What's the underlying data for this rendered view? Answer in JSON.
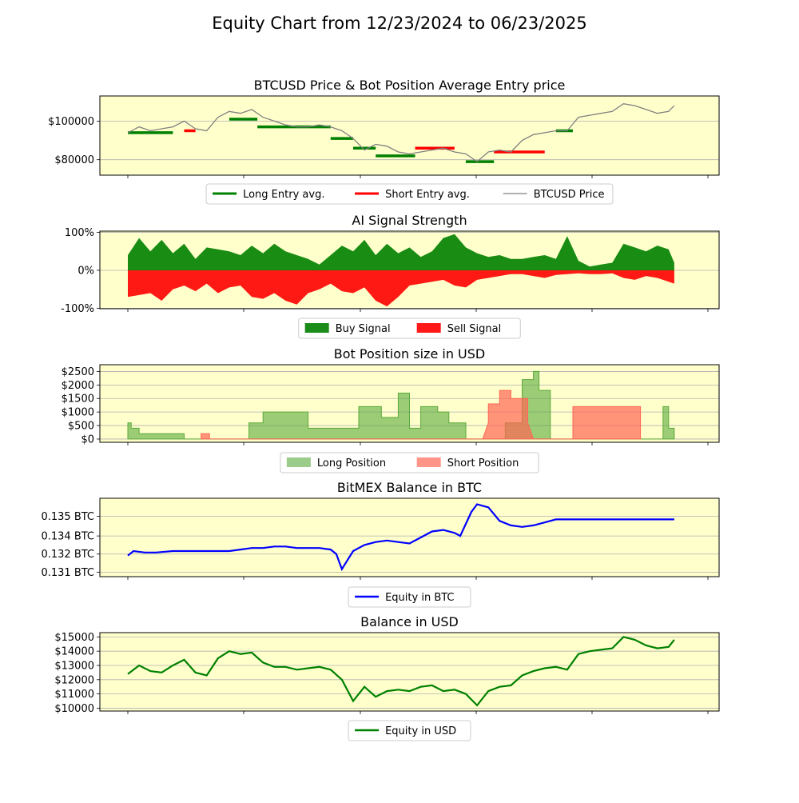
{
  "figure": {
    "title": "Equity Chart from 12/23/2024 to 06/23/2025"
  },
  "colors": {
    "panel_bg": "#ffffcc",
    "long": "#008000",
    "short": "#ff0000",
    "price": "#808080",
    "buy": "#008000",
    "sell": "#ff0000",
    "long_pos": "#5aaa3a",
    "short_pos": "#ff6655",
    "btc": "#0000ff",
    "usd": "#008000",
    "grid": "#b0b0b0"
  },
  "chart_data": [
    {
      "type": "line",
      "title": "BTCUSD Price & Bot Position Average Entry price",
      "x_range": [
        0,
        100
      ],
      "ylim": [
        72000,
        113000
      ],
      "yticks": [
        80000,
        100000
      ],
      "ytick_labels": [
        "$80000",
        "$100000"
      ],
      "grid": true,
      "legend_position": "bottom-center",
      "legend": [
        "Long Entry avg.",
        "Short Entry avg.",
        "BTCUSD Price"
      ],
      "series": [
        {
          "name": "BTCUSD Price",
          "x": [
            0,
            2,
            4,
            6,
            8,
            10,
            12,
            14,
            16,
            18,
            20,
            22,
            24,
            26,
            28,
            30,
            32,
            34,
            36,
            38,
            40,
            42,
            44,
            46,
            48,
            50,
            52,
            54,
            56,
            58,
            60,
            62,
            64,
            66,
            68,
            70,
            72,
            74,
            76,
            78,
            80,
            82,
            84,
            86,
            88,
            90,
            92,
            94,
            96,
            97
          ],
          "y": [
            94000,
            97000,
            95000,
            96000,
            97000,
            100000,
            96000,
            95000,
            102000,
            105000,
            104000,
            106000,
            102000,
            100000,
            98000,
            97000,
            97000,
            98000,
            97000,
            95000,
            91000,
            85000,
            88000,
            87000,
            84000,
            83000,
            84000,
            85000,
            86000,
            84000,
            83000,
            79000,
            84000,
            85000,
            84000,
            90000,
            93000,
            94000,
            95000,
            95000,
            102000,
            103000,
            104000,
            105000,
            109000,
            108000,
            106000,
            104000,
            105000,
            108000
          ]
        }
      ],
      "segments": [
        {
          "side": "long",
          "x0": 0,
          "x1": 8,
          "y": 94000
        },
        {
          "side": "short",
          "x0": 10,
          "x1": 12,
          "y": 95000
        },
        {
          "side": "long",
          "x0": 18,
          "x1": 23,
          "y": 101000
        },
        {
          "side": "long",
          "x0": 23,
          "x1": 36,
          "y": 97000
        },
        {
          "side": "long",
          "x0": 36,
          "x1": 40,
          "y": 91000
        },
        {
          "side": "long",
          "x0": 40,
          "x1": 44,
          "y": 86000
        },
        {
          "side": "long",
          "x0": 44,
          "x1": 51,
          "y": 82000
        },
        {
          "side": "short",
          "x0": 51,
          "x1": 58,
          "y": 86000
        },
        {
          "side": "long",
          "x0": 60,
          "x1": 65,
          "y": 79000
        },
        {
          "side": "short",
          "x0": 65,
          "x1": 74,
          "y": 84000
        },
        {
          "side": "long",
          "x0": 76,
          "x1": 79,
          "y": 95000
        }
      ]
    },
    {
      "type": "area",
      "title": "AI Signal Strength",
      "x_range": [
        0,
        100
      ],
      "ylim": [
        -101,
        103
      ],
      "yticks": [
        -100,
        0,
        100
      ],
      "ytick_labels": [
        "-100%",
        "0%",
        "100%"
      ],
      "grid": true,
      "legend_position": "bottom-center",
      "legend": [
        "Buy Signal",
        "Sell Signal"
      ],
      "series": [
        {
          "name": "Buy Signal",
          "x": [
            0,
            2,
            4,
            6,
            8,
            10,
            12,
            14,
            16,
            18,
            20,
            22,
            24,
            26,
            28,
            30,
            32,
            34,
            36,
            38,
            40,
            42,
            44,
            46,
            48,
            50,
            52,
            54,
            56,
            58,
            60,
            62,
            64,
            66,
            68,
            70,
            72,
            74,
            76,
            78,
            80,
            82,
            84,
            86,
            88,
            90,
            92,
            94,
            96,
            97
          ],
          "y": [
            40,
            85,
            50,
            80,
            45,
            70,
            30,
            60,
            55,
            50,
            40,
            65,
            45,
            70,
            50,
            40,
            30,
            15,
            40,
            65,
            50,
            80,
            40,
            70,
            45,
            60,
            35,
            50,
            85,
            95,
            60,
            45,
            35,
            40,
            30,
            30,
            35,
            40,
            30,
            90,
            25,
            10,
            15,
            20,
            70,
            60,
            50,
            65,
            55,
            20
          ]
        },
        {
          "name": "Sell Signal",
          "x": [
            0,
            2,
            4,
            6,
            8,
            10,
            12,
            14,
            16,
            18,
            20,
            22,
            24,
            26,
            28,
            30,
            32,
            34,
            36,
            38,
            40,
            42,
            44,
            46,
            48,
            50,
            52,
            54,
            56,
            58,
            60,
            62,
            64,
            66,
            68,
            70,
            72,
            74,
            76,
            78,
            80,
            82,
            84,
            86,
            88,
            90,
            92,
            94,
            96,
            97
          ],
          "y": [
            -70,
            -65,
            -60,
            -80,
            -50,
            -40,
            -55,
            -35,
            -60,
            -45,
            -40,
            -70,
            -75,
            -60,
            -80,
            -90,
            -60,
            -50,
            -35,
            -55,
            -60,
            -45,
            -80,
            -95,
            -70,
            -40,
            -35,
            -30,
            -25,
            -40,
            -45,
            -25,
            -20,
            -15,
            -10,
            -10,
            -15,
            -20,
            -12,
            -10,
            -8,
            -10,
            -10,
            -8,
            -20,
            -25,
            -15,
            -20,
            -30,
            -35
          ]
        }
      ]
    },
    {
      "type": "area",
      "title": "Bot Position size in USD",
      "x_range": [
        0,
        100
      ],
      "ylim": [
        -120,
        2750
      ],
      "yticks": [
        0,
        500,
        1000,
        1500,
        2000,
        2500
      ],
      "ytick_labels": [
        "$0",
        "$500",
        "$1000",
        "$1500",
        "$2000",
        "$2500"
      ],
      "grid": true,
      "legend_position": "bottom-center",
      "legend": [
        "Long Position",
        "Short Position"
      ],
      "series": [
        {
          "name": "Long Position",
          "x": [
            0,
            0.6,
            0.6,
            2,
            2,
            10,
            10,
            21.5,
            21.5,
            24,
            24,
            29,
            29,
            32,
            32,
            41,
            41,
            45,
            45,
            48,
            48,
            50,
            50,
            52,
            52,
            55,
            55,
            57,
            57,
            60,
            60,
            63,
            63,
            65,
            65,
            66,
            66,
            67,
            67,
            70,
            70,
            72,
            72,
            73,
            73,
            75,
            75,
            76,
            76,
            79,
            79,
            80,
            80,
            95,
            95,
            96,
            96,
            97,
            97
          ],
          "y": [
            600,
            600,
            400,
            400,
            200,
            200,
            0,
            0,
            600,
            600,
            1000,
            1000,
            1000,
            1000,
            400,
            400,
            1200,
            1200,
            800,
            800,
            1700,
            1700,
            400,
            400,
            1200,
            1200,
            1000,
            1000,
            600,
            600,
            0,
            0,
            0,
            0,
            0,
            0,
            0,
            0,
            600,
            600,
            2200,
            2200,
            2500,
            2500,
            1800,
            1800,
            0,
            0,
            0,
            0,
            0,
            0,
            0,
            0,
            1200,
            1200,
            400,
            400,
            0
          ]
        },
        {
          "name": "Short Position",
          "x": [
            13,
            13,
            14.5,
            14.5,
            63,
            64,
            64,
            66,
            66,
            68,
            68,
            71,
            71,
            72,
            79,
            79,
            91,
            91
          ],
          "y": [
            0,
            200,
            200,
            0,
            0,
            600,
            1300,
            1300,
            1800,
            1800,
            1500,
            1500,
            600,
            0,
            0,
            1200,
            1200,
            0
          ]
        }
      ]
    },
    {
      "type": "line",
      "title": "BitMEX Balance in BTC",
      "x_range": [
        0,
        100
      ],
      "ylim": [
        0.1307,
        0.1359
      ],
      "yticks": [
        0.131,
        0.1322,
        0.1334,
        0.1347
      ],
      "ytick_labels": [
        "0.131 BTC",
        "0.132 BTC",
        "0.134 BTC",
        "0.135 BTC"
      ],
      "grid": true,
      "legend_position": "bottom-center",
      "legend": [
        "Equity in BTC"
      ],
      "series": [
        {
          "name": "Equity in BTC",
          "x": [
            0,
            1,
            3,
            5,
            8,
            10,
            12,
            14,
            18,
            20,
            22,
            24,
            26,
            28,
            30,
            32,
            34,
            36,
            37,
            38,
            39,
            40,
            41,
            42,
            44,
            46,
            48,
            50,
            52,
            54,
            56,
            58,
            59,
            60,
            61,
            62,
            63,
            64,
            66,
            68,
            70,
            72,
            74,
            76,
            78,
            80,
            82,
            84,
            86,
            88,
            90,
            92,
            94,
            96,
            97
          ],
          "y": [
            0.1321,
            0.1324,
            0.1323,
            0.1323,
            0.1324,
            0.1324,
            0.1324,
            0.1324,
            0.1324,
            0.1325,
            0.1326,
            0.1326,
            0.1327,
            0.1327,
            0.1326,
            0.1326,
            0.1326,
            0.1325,
            0.1322,
            0.1312,
            0.1318,
            0.1324,
            0.1326,
            0.1328,
            0.133,
            0.1331,
            0.133,
            0.1329,
            0.1333,
            0.1337,
            0.1338,
            0.1336,
            0.1334,
            0.1342,
            0.135,
            0.1355,
            0.1354,
            0.1353,
            0.1344,
            0.1341,
            0.134,
            0.1341,
            0.1343,
            0.1345,
            0.1345,
            0.1345,
            0.1345,
            0.1345,
            0.1345,
            0.1345,
            0.1345,
            0.1345,
            0.1345,
            0.1345,
            0.1345
          ]
        }
      ]
    },
    {
      "type": "line",
      "title": "Balance in USD",
      "x_range": [
        0,
        100
      ],
      "ylim": [
        9800,
        15300
      ],
      "yticks": [
        10000,
        11000,
        12000,
        13000,
        14000,
        15000
      ],
      "ytick_labels": [
        "$10000",
        "$11000",
        "$12000",
        "$13000",
        "$14000",
        "$15000"
      ],
      "grid": true,
      "legend_position": "bottom-center",
      "legend": [
        "Equity in USD"
      ],
      "series": [
        {
          "name": "Equity in USD",
          "x": [
            0,
            2,
            4,
            6,
            8,
            10,
            12,
            14,
            16,
            18,
            20,
            22,
            24,
            26,
            28,
            30,
            32,
            34,
            36,
            38,
            40,
            42,
            44,
            46,
            48,
            50,
            52,
            54,
            56,
            58,
            60,
            62,
            64,
            66,
            68,
            70,
            72,
            74,
            76,
            78,
            80,
            82,
            84,
            86,
            88,
            90,
            92,
            94,
            96,
            97
          ],
          "y": [
            12400,
            13000,
            12600,
            12500,
            13000,
            13400,
            12500,
            12300,
            13500,
            14000,
            13800,
            13900,
            13200,
            12900,
            12900,
            12700,
            12800,
            12900,
            12700,
            12000,
            10500,
            11500,
            10800,
            11200,
            11300,
            11200,
            11500,
            11600,
            11200,
            11300,
            11000,
            10200,
            11200,
            11500,
            11600,
            12300,
            12600,
            12800,
            12900,
            12700,
            13800,
            14000,
            14100,
            14200,
            15000,
            14800,
            14400,
            14200,
            14300,
            14800
          ]
        }
      ]
    }
  ]
}
